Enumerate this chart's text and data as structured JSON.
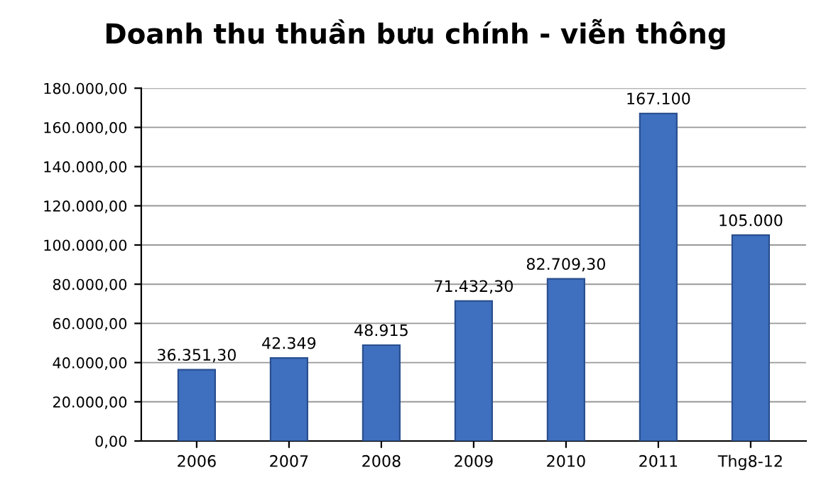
{
  "chart_data": {
    "type": "bar",
    "title": "Doanh thu thuần bưu chính - viễn thông",
    "categories": [
      "2006",
      "2007",
      "2008",
      "2009",
      "2010",
      "2011",
      "Thg8-12"
    ],
    "values": [
      36351.3,
      42349,
      48915,
      71432.3,
      82709.3,
      167100,
      105000
    ],
    "value_labels": [
      "36.351,30",
      "42.349",
      "48.915",
      "71.432,30",
      "82.709,30",
      "167.100",
      "105.000"
    ],
    "color": "#3f6fbf",
    "ylim": [
      0,
      180000
    ],
    "yticks": [
      {
        "value": 0,
        "label": "0,00"
      },
      {
        "value": 20000,
        "label": "20.000,00"
      },
      {
        "value": 40000,
        "label": "40.000,00"
      },
      {
        "value": 60000,
        "label": "60.000,00"
      },
      {
        "value": 80000,
        "label": "80.000,00"
      },
      {
        "value": 100000,
        "label": "100.000,00"
      },
      {
        "value": 120000,
        "label": "120.000,00"
      },
      {
        "value": 140000,
        "label": "140.000,00"
      },
      {
        "value": 160000,
        "label": "160.000,00"
      },
      {
        "value": 180000,
        "label": "180.000,00"
      }
    ],
    "grid": "y"
  }
}
